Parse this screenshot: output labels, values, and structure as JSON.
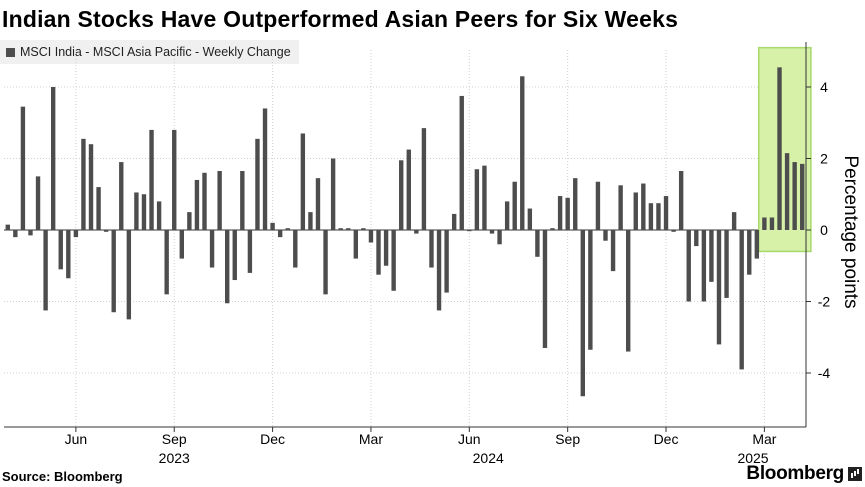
{
  "chart_data": {
    "type": "bar",
    "title": "Indian Stocks Have Outperformed Asian Peers for Six Weeks",
    "legend": [
      "MSCI India - MSCI Asia Pacific - Weekly Change"
    ],
    "ylabel": "Percentage points",
    "ylim": [
      -5.5,
      5.2
    ],
    "yticks": [
      -4,
      -2,
      0,
      2,
      4
    ],
    "ytick_labels": [
      "-4",
      "-2",
      "0",
      "2",
      "4"
    ],
    "x_month_ticks": [
      {
        "week": 9,
        "label": "Jun"
      },
      {
        "week": 22,
        "label": "Sep"
      },
      {
        "week": 35,
        "label": "Dec"
      },
      {
        "week": 48,
        "label": "Mar"
      },
      {
        "week": 61,
        "label": "Jun"
      },
      {
        "week": 74,
        "label": "Sep"
      },
      {
        "week": 87,
        "label": "Dec"
      },
      {
        "week": 100,
        "label": "Mar"
      }
    ],
    "x_year_labels": [
      {
        "week": 22,
        "label": "2023"
      },
      {
        "week": 63.5,
        "label": "2024"
      },
      {
        "week": 98.5,
        "label": "2025"
      }
    ],
    "highlight": {
      "first_week": 100,
      "last_week": 106,
      "ymin": -0.6,
      "ymax": 5.1,
      "color": "#d7f1a9",
      "label": "Six Weeks"
    },
    "series": [
      {
        "name": "MSCI India - MSCI Asia Pacific - Weekly Change",
        "color": "#4d4d4d",
        "values": [
          0.15,
          -0.2,
          3.45,
          -0.15,
          1.5,
          -2.25,
          4.0,
          -1.1,
          -1.35,
          -0.2,
          2.55,
          2.4,
          1.2,
          -0.05,
          -2.3,
          1.9,
          -2.5,
          1.05,
          1.0,
          2.8,
          0.8,
          -1.8,
          2.8,
          -0.8,
          0.5,
          1.4,
          1.6,
          -1.05,
          1.65,
          -2.05,
          -1.4,
          1.65,
          -1.2,
          2.55,
          3.4,
          0.2,
          -0.2,
          0.05,
          -1.05,
          2.7,
          0.5,
          1.45,
          -1.8,
          2.0,
          0.05,
          0.05,
          -0.8,
          0.05,
          -0.35,
          -1.25,
          -1.0,
          -1.7,
          1.95,
          2.25,
          -0.1,
          2.85,
          -1.05,
          -2.25,
          -1.75,
          0.45,
          3.75,
          0.0,
          1.7,
          1.8,
          -0.1,
          -0.4,
          0.8,
          1.35,
          4.3,
          0.6,
          -0.75,
          -3.3,
          0.05,
          0.95,
          0.9,
          1.45,
          -4.65,
          -3.35,
          1.35,
          -0.3,
          -1.15,
          1.25,
          -3.4,
          1.05,
          1.3,
          0.75,
          0.75,
          0.95,
          -0.05,
          1.65,
          -2.0,
          -0.45,
          -2.0,
          -1.45,
          -3.2,
          -1.9,
          0.5,
          -3.9,
          -1.25,
          -0.8,
          0.35,
          0.35,
          4.55,
          2.15,
          1.9,
          1.85
        ]
      }
    ]
  },
  "source": "Source: Bloomberg",
  "brand": "Bloomberg"
}
